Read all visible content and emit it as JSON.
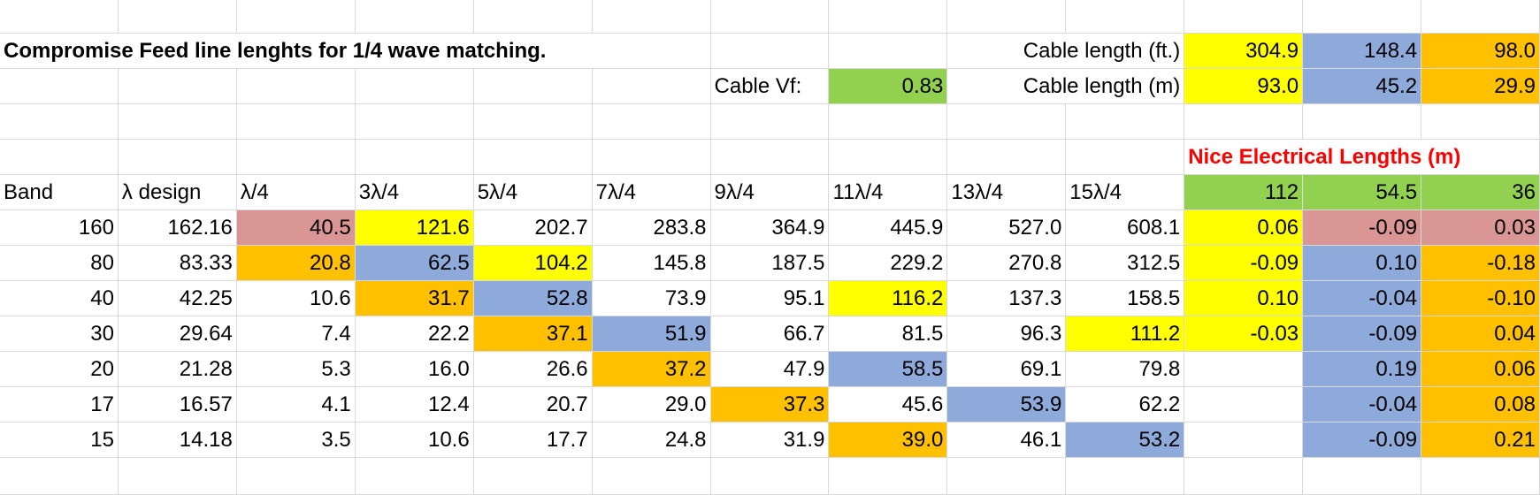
{
  "title": "Compromise Feed line lenghts for 1/4 wave matching.",
  "cable_vf": {
    "label": "Cable Vf:",
    "value": "0.83"
  },
  "cable_length": [
    {
      "label": "Cable length (ft.)",
      "values": [
        "304.9",
        "148.4",
        "98.0"
      ]
    },
    {
      "label": "Cable length (m)",
      "values": [
        "93.0",
        "45.2",
        "29.9"
      ]
    }
  ],
  "nice_lengths_title": "Nice Electrical Lengths (m)",
  "table": {
    "header": [
      "Band",
      "λ design",
      "λ/4",
      "3λ/4",
      "5λ/4",
      "7λ/4",
      "9λ/4",
      "11λ/4",
      "13λ/4",
      "15λ/4",
      "112",
      "54.5",
      "36"
    ],
    "rows": [
      [
        "160",
        "162.16",
        "40.5",
        "121.6",
        "202.7",
        "283.8",
        "364.9",
        "445.9",
        "527.0",
        "608.1",
        "0.06",
        "-0.09",
        "0.03"
      ],
      [
        "80",
        "83.33",
        "20.8",
        "62.5",
        "104.2",
        "145.8",
        "187.5",
        "229.2",
        "270.8",
        "312.5",
        "-0.09",
        "0.10",
        "-0.18"
      ],
      [
        "40",
        "42.25",
        "10.6",
        "31.7",
        "52.8",
        "73.9",
        "95.1",
        "116.2",
        "137.3",
        "158.5",
        "0.10",
        "-0.04",
        "-0.10"
      ],
      [
        "30",
        "29.64",
        "7.4",
        "22.2",
        "37.1",
        "51.9",
        "66.7",
        "81.5",
        "96.3",
        "111.2",
        "-0.03",
        "-0.09",
        "0.04"
      ],
      [
        "20",
        "21.28",
        "5.3",
        "16.0",
        "26.6",
        "37.2",
        "47.9",
        "58.5",
        "69.1",
        "79.8",
        null,
        "0.19",
        "0.06"
      ],
      [
        "17",
        "16.57",
        "4.1",
        "12.4",
        "20.7",
        "29.0",
        "37.3",
        "45.6",
        "53.9",
        "62.2",
        null,
        "-0.04",
        "0.08"
      ],
      [
        "15",
        "14.18",
        "3.5",
        "10.6",
        "17.7",
        "24.8",
        "31.9",
        "39.0",
        "46.1",
        "53.2",
        null,
        "-0.09",
        "0.21"
      ]
    ]
  }
}
